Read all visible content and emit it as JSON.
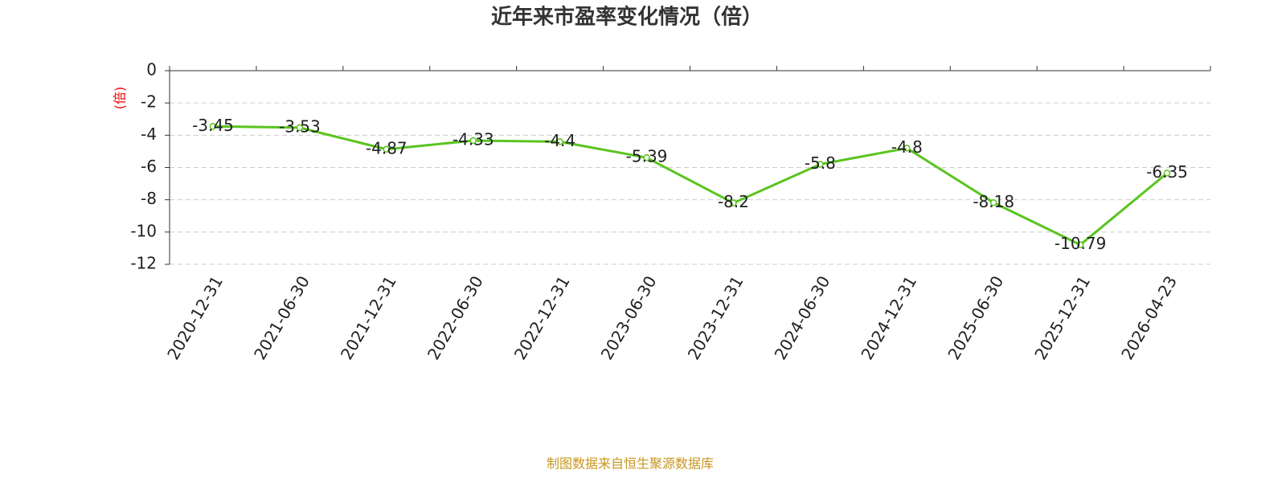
{
  "chart_data": {
    "type": "line",
    "title": "近年来市盈率变化情况（倍）",
    "y_label": "(倍)",
    "categories": [
      "2020-12-31",
      "2021-06-30",
      "2021-12-31",
      "2022-06-30",
      "2022-12-31",
      "2023-06-30",
      "2023-12-31",
      "2024-06-30",
      "2024-12-31",
      "2025-06-30",
      "2025-12-31",
      "2026-04-23"
    ],
    "values": [
      -3.45,
      -3.53,
      -4.87,
      -4.33,
      -4.4,
      -5.39,
      -8.2,
      -5.8,
      -4.8,
      -8.18,
      -10.79,
      -6.35
    ],
    "color": "#5ac41f",
    "ylim": [
      -12,
      0
    ],
    "yticks": [
      0,
      -2,
      -4,
      -6,
      -8,
      -10,
      -12
    ],
    "grid": true,
    "source": "制图数据来自恒生聚源数据库"
  }
}
